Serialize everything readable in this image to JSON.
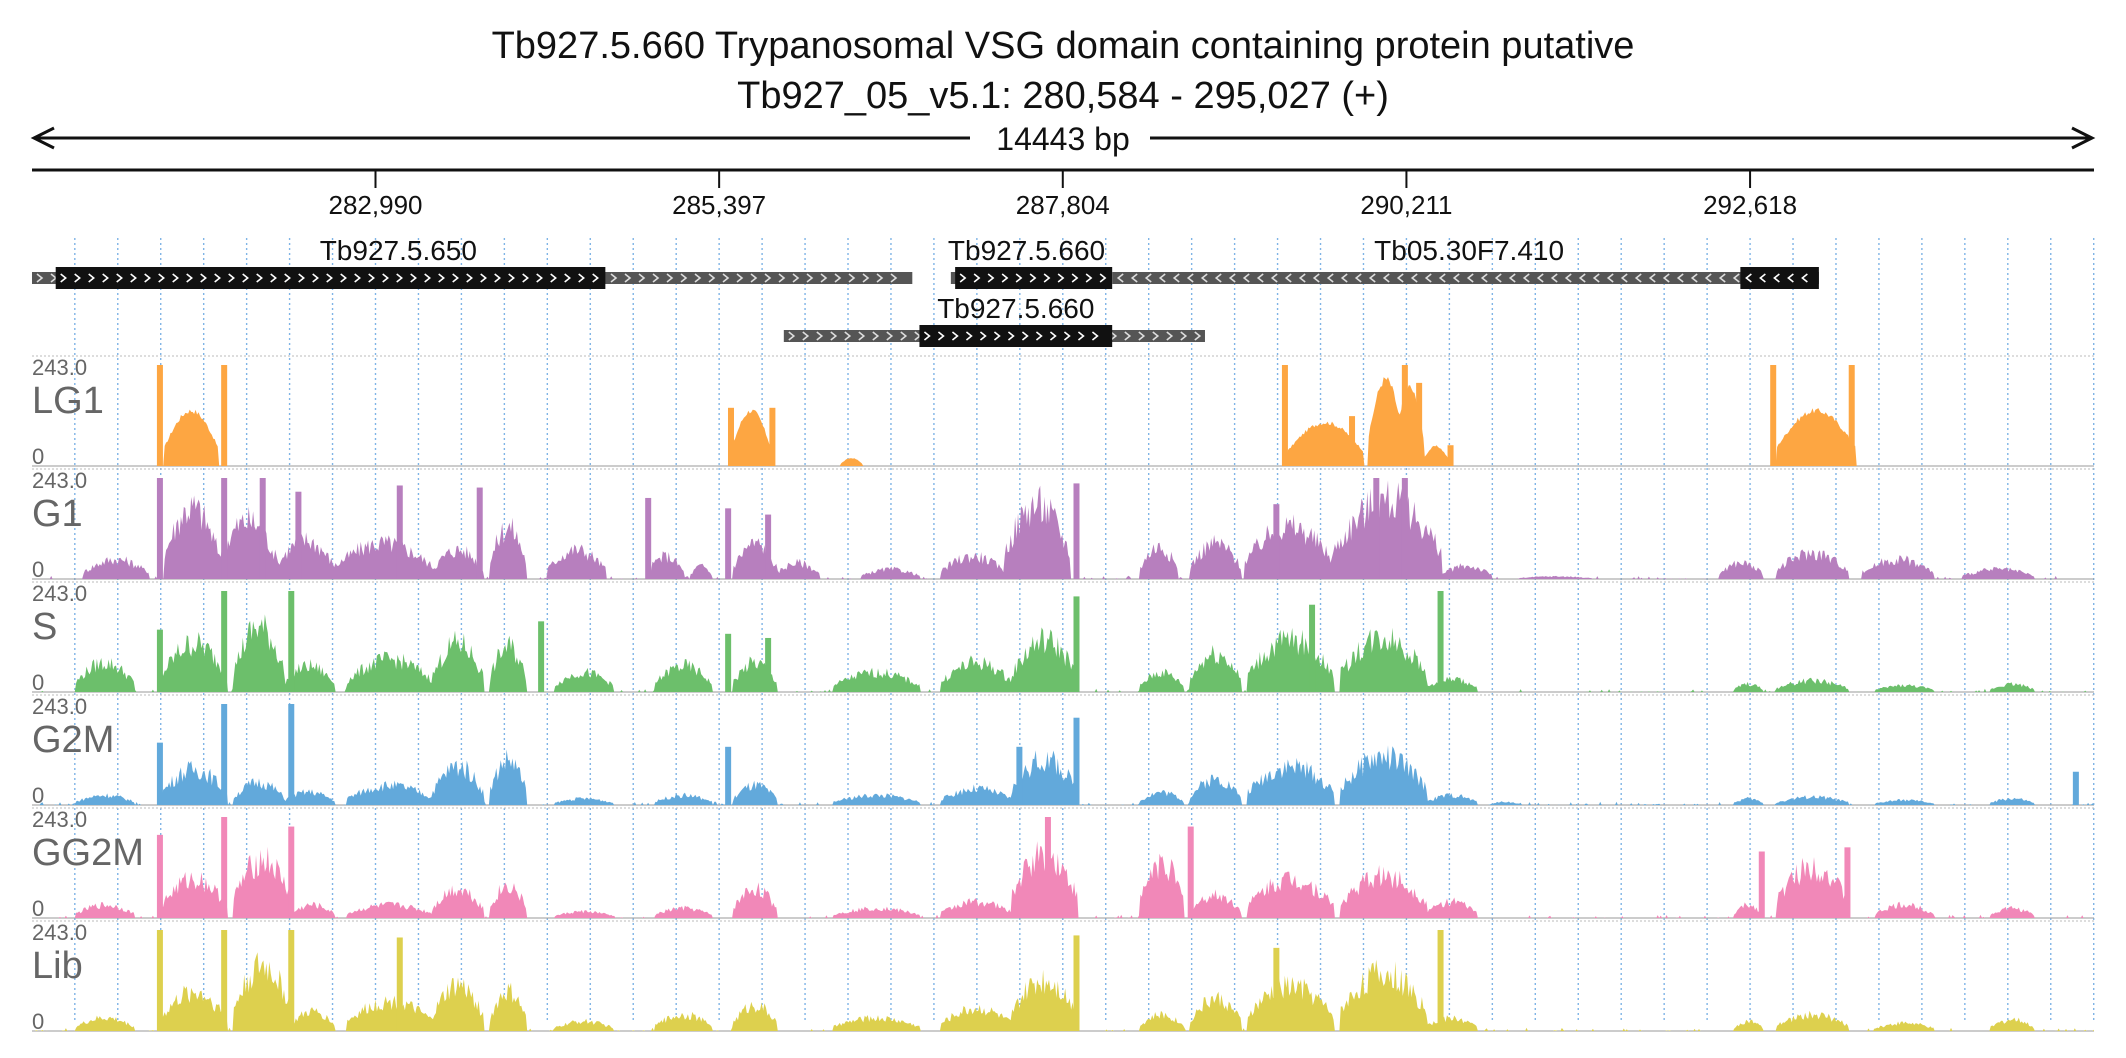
{
  "chart_data": {
    "type": "area",
    "title": "Tb927.5.660  Trypanosomal VSG domain containing protein  putative",
    "subtitle": "Tb927_05_v5.1: 280,584 - 295,027 (+)",
    "span_label": "14443 bp",
    "xlim": [
      280584,
      295027
    ],
    "ticks": [
      {
        "value": 282990,
        "label": "282,990"
      },
      {
        "value": 285397,
        "label": "285,397"
      },
      {
        "value": 287804,
        "label": "287,804"
      },
      {
        "value": 290211,
        "label": "290,211"
      },
      {
        "value": 292618,
        "label": "292,618"
      }
    ],
    "genes": [
      {
        "name": "Tb927.5.650",
        "start": 280584,
        "end": 286750,
        "cds_start": 280750,
        "cds_end": 284600,
        "strand": "+",
        "row": 1
      },
      {
        "name": "Tb927.5.660",
        "start": 287020,
        "end": 288050,
        "cds_start": 287050,
        "cds_end": 288150,
        "strand": "+",
        "row": 1
      },
      {
        "name": "Tb05.30F7.410",
        "start": 288150,
        "end": 293100,
        "cds_start": 292550,
        "cds_end": 293100,
        "strand": "-",
        "row": 1
      },
      {
        "name": "Tb927.5.660",
        "start": 285850,
        "end": 288800,
        "cds_start": 286800,
        "cds_end": 288150,
        "strand": "+",
        "row": 2
      }
    ],
    "ylim": [
      0,
      243.0
    ],
    "ymax_label": "243.0",
    "ymin_label": "0",
    "series": [
      {
        "name": "LG1",
        "color": "#FDA642",
        "mode": "sparse",
        "points": [
          [
            281500,
            243
          ],
          [
            281560,
            160
          ],
          [
            281700,
            150
          ],
          [
            281850,
            60
          ],
          [
            281900,
            243
          ],
          [
            281960,
            0
          ],
          [
            283130,
            0
          ],
          [
            283170,
            18
          ],
          [
            283280,
            20
          ],
          [
            283300,
            0
          ],
          [
            283550,
            0
          ],
          [
            283580,
            25
          ],
          [
            283750,
            35
          ],
          [
            283760,
            0
          ],
          [
            283830,
            0
          ],
          [
            283840,
            80
          ],
          [
            283880,
            130
          ],
          [
            283950,
            100
          ],
          [
            284000,
            140
          ],
          [
            284030,
            0
          ],
          [
            285900,
            0
          ],
          [
            285950,
            20
          ],
          [
            286250,
            0
          ],
          [
            286050,
            0
          ],
          [
            287200,
            0
          ],
          [
            287220,
            60
          ],
          [
            287300,
            30
          ],
          [
            287380,
            45
          ],
          [
            287440,
            0
          ],
          [
            287500,
            0
          ],
          [
            287550,
            15
          ],
          [
            287600,
            10
          ],
          [
            287700,
            20
          ],
          [
            287800,
            15
          ],
          [
            287850,
            0
          ]
        ],
        "bumps": [
          [
            281520,
            281890,
            140
          ],
          [
            285490,
            285760,
            140
          ],
          [
            286250,
            286400,
            20
          ],
          [
            289380,
            289900,
            110
          ],
          [
            289950,
            290180,
            220
          ],
          [
            290130,
            290330,
            200
          ],
          [
            290330,
            290500,
            50
          ],
          [
            292800,
            293350,
            140
          ]
        ],
        "spikes": [
          [
            281480,
            243
          ],
          [
            281930,
            243
          ],
          [
            285480,
            140
          ],
          [
            285770,
            140
          ],
          [
            289360,
            243
          ],
          [
            289830,
            120
          ],
          [
            290200,
            243
          ],
          [
            290300,
            200
          ],
          [
            290520,
            50
          ],
          [
            292780,
            243
          ],
          [
            293330,
            243
          ]
        ]
      },
      {
        "name": "G1",
        "color": "#B77FBE",
        "mode": "dense",
        "bumps": [
          [
            280950,
            281400,
            60
          ],
          [
            281520,
            281900,
            220
          ],
          [
            281900,
            282300,
            180
          ],
          [
            282300,
            282700,
            120
          ],
          [
            282700,
            283400,
            110
          ],
          [
            283400,
            283750,
            90
          ],
          [
            283800,
            284050,
            160
          ],
          [
            284200,
            284600,
            90
          ],
          [
            284900,
            285150,
            70
          ],
          [
            285200,
            285350,
            40
          ],
          [
            285500,
            285800,
            110
          ],
          [
            285800,
            286100,
            50
          ],
          [
            286400,
            286800,
            30
          ],
          [
            286950,
            287400,
            70
          ],
          [
            287400,
            287850,
            230
          ],
          [
            288350,
            288600,
            100
          ],
          [
            288700,
            289050,
            110
          ],
          [
            289080,
            289700,
            160
          ],
          [
            289700,
            290450,
            243
          ],
          [
            290450,
            290800,
            40
          ],
          [
            291000,
            291500,
            8
          ],
          [
            292400,
            292700,
            50
          ],
          [
            292800,
            293300,
            80
          ],
          [
            293400,
            293900,
            60
          ],
          [
            294100,
            294600,
            30
          ]
        ],
        "spikes": [
          [
            281480,
            243
          ],
          [
            281930,
            243
          ],
          [
            282200,
            243
          ],
          [
            282450,
            210
          ],
          [
            283160,
            225
          ],
          [
            283720,
            220
          ],
          [
            284900,
            195
          ],
          [
            285460,
            170
          ],
          [
            285740,
            155
          ],
          [
            287900,
            230
          ],
          [
            289300,
            180
          ],
          [
            290000,
            243
          ],
          [
            290200,
            243
          ]
        ]
      },
      {
        "name": "S",
        "color": "#6CBF6B",
        "mode": "dense",
        "bumps": [
          [
            280900,
            281300,
            90
          ],
          [
            281500,
            281950,
            150
          ],
          [
            282000,
            282350,
            200
          ],
          [
            282350,
            282700,
            80
          ],
          [
            282800,
            283400,
            100
          ],
          [
            283400,
            283750,
            150
          ],
          [
            283800,
            284050,
            140
          ],
          [
            284250,
            284650,
            60
          ],
          [
            284950,
            285350,
            80
          ],
          [
            285500,
            285800,
            90
          ],
          [
            286200,
            286800,
            60
          ],
          [
            286950,
            287450,
            90
          ],
          [
            287450,
            287900,
            160
          ],
          [
            288350,
            288650,
            60
          ],
          [
            288700,
            289050,
            120
          ],
          [
            289100,
            289700,
            160
          ],
          [
            289750,
            290350,
            170
          ],
          [
            290350,
            290700,
            40
          ],
          [
            292500,
            292700,
            25
          ],
          [
            292800,
            293300,
            35
          ],
          [
            293500,
            293900,
            20
          ],
          [
            294300,
            294600,
            25
          ]
        ],
        "spikes": [
          [
            281930,
            243
          ],
          [
            282400,
            243
          ],
          [
            281480,
            150
          ],
          [
            284150,
            170
          ],
          [
            285460,
            140
          ],
          [
            285740,
            130
          ],
          [
            287900,
            230
          ],
          [
            289550,
            210
          ],
          [
            290450,
            243
          ]
        ]
      },
      {
        "name": "G2M",
        "color": "#62A9DB",
        "mode": "dense",
        "bumps": [
          [
            280900,
            281300,
            30
          ],
          [
            281500,
            281950,
            110
          ],
          [
            282000,
            282350,
            70
          ],
          [
            282350,
            282700,
            40
          ],
          [
            282800,
            283400,
            60
          ],
          [
            283400,
            283750,
            120
          ],
          [
            283800,
            284050,
            140
          ],
          [
            284250,
            284650,
            20
          ],
          [
            284950,
            285350,
            30
          ],
          [
            285500,
            285800,
            60
          ],
          [
            286200,
            286800,
            30
          ],
          [
            286950,
            287450,
            50
          ],
          [
            287450,
            287900,
            140
          ],
          [
            288350,
            288650,
            40
          ],
          [
            288700,
            289050,
            80
          ],
          [
            289100,
            289700,
            120
          ],
          [
            289750,
            290350,
            150
          ],
          [
            290350,
            290700,
            30
          ],
          [
            290800,
            291000,
            10
          ],
          [
            292500,
            292700,
            20
          ],
          [
            292800,
            293300,
            25
          ],
          [
            293500,
            293900,
            15
          ],
          [
            294300,
            294600,
            20
          ]
        ],
        "spikes": [
          [
            281930,
            243
          ],
          [
            282400,
            243
          ],
          [
            281480,
            150
          ],
          [
            285460,
            140
          ],
          [
            287500,
            140
          ],
          [
            287900,
            210
          ],
          [
            294900,
            80
          ]
        ]
      },
      {
        "name": "GG2M",
        "color": "#F188B8",
        "mode": "dense",
        "bumps": [
          [
            280900,
            281300,
            40
          ],
          [
            281500,
            281950,
            120
          ],
          [
            282000,
            282400,
            180
          ],
          [
            282400,
            282700,
            40
          ],
          [
            282800,
            283400,
            40
          ],
          [
            283400,
            283750,
            90
          ],
          [
            283800,
            284050,
            100
          ],
          [
            284250,
            284650,
            20
          ],
          [
            284950,
            285350,
            30
          ],
          [
            285500,
            285800,
            90
          ],
          [
            286200,
            286800,
            30
          ],
          [
            286950,
            287450,
            50
          ],
          [
            287450,
            287900,
            200
          ],
          [
            288350,
            288650,
            170
          ],
          [
            288700,
            289050,
            70
          ],
          [
            289100,
            289700,
            120
          ],
          [
            289750,
            290350,
            130
          ],
          [
            290350,
            290700,
            50
          ],
          [
            292500,
            292700,
            40
          ],
          [
            292800,
            293300,
            160
          ],
          [
            293500,
            293900,
            40
          ],
          [
            294300,
            294600,
            30
          ]
        ],
        "spikes": [
          [
            281930,
            243
          ],
          [
            282400,
            220
          ],
          [
            281480,
            200
          ],
          [
            287700,
            243
          ],
          [
            288700,
            220
          ],
          [
            292700,
            160
          ],
          [
            293300,
            170
          ]
        ]
      },
      {
        "name": "Lib",
        "color": "#DDD04E",
        "mode": "dense",
        "bumps": [
          [
            280900,
            281300,
            40
          ],
          [
            281500,
            281950,
            120
          ],
          [
            282000,
            282400,
            200
          ],
          [
            282400,
            282700,
            60
          ],
          [
            282800,
            283400,
            90
          ],
          [
            283400,
            283750,
            140
          ],
          [
            283800,
            284050,
            120
          ],
          [
            284250,
            284650,
            30
          ],
          [
            284950,
            285350,
            50
          ],
          [
            285500,
            285800,
            80
          ],
          [
            286200,
            286800,
            40
          ],
          [
            286950,
            287450,
            70
          ],
          [
            287450,
            287900,
            160
          ],
          [
            288350,
            288650,
            50
          ],
          [
            288700,
            289050,
            100
          ],
          [
            289100,
            289700,
            140
          ],
          [
            289750,
            290350,
            180
          ],
          [
            290350,
            290700,
            40
          ],
          [
            292500,
            292700,
            30
          ],
          [
            292800,
            293300,
            50
          ],
          [
            293500,
            293900,
            25
          ],
          [
            294300,
            294600,
            35
          ]
        ],
        "spikes": [
          [
            281930,
            243
          ],
          [
            282400,
            243
          ],
          [
            281480,
            243
          ],
          [
            283160,
            225
          ],
          [
            287900,
            230
          ],
          [
            289300,
            200
          ],
          [
            290450,
            243
          ]
        ]
      }
    ]
  }
}
